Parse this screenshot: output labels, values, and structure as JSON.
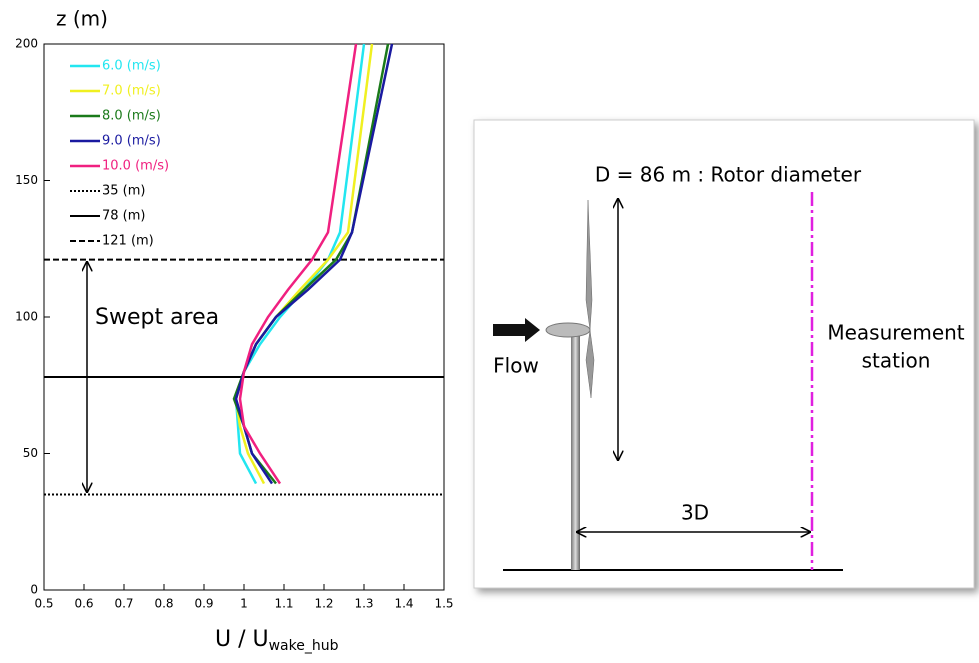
{
  "chart_data": {
    "type": "line",
    "y_label": "z (m)",
    "x_label": {
      "text": "U / U",
      "subscript": "wake_hub"
    },
    "x": [
      39,
      50,
      60,
      70,
      80,
      90,
      100,
      110,
      121,
      131,
      200
    ],
    "series": [
      {
        "name": "6.0 (m/s)",
        "color": "#22e6f0",
        "values": [
          1.03,
          0.99,
          0.985,
          0.98,
          1.0,
          1.04,
          1.09,
          1.15,
          1.21,
          1.24,
          1.3
        ]
      },
      {
        "name": "7.0 (m/s)",
        "color": "#f0f020",
        "values": [
          1.05,
          1.01,
          0.99,
          0.98,
          1.0,
          1.03,
          1.08,
          1.14,
          1.21,
          1.26,
          1.32
        ]
      },
      {
        "name": "8.0 (m/s)",
        "color": "#1a7a1a",
        "values": [
          1.08,
          1.02,
          1.0,
          0.975,
          1.0,
          1.03,
          1.08,
          1.15,
          1.23,
          1.27,
          1.36
        ]
      },
      {
        "name": "9.0 (m/s)",
        "color": "#1a1aa0",
        "values": [
          1.07,
          1.02,
          1.0,
          0.98,
          1.0,
          1.03,
          1.08,
          1.16,
          1.24,
          1.27,
          1.37
        ]
      },
      {
        "name": "10.0 (m/s)",
        "color": "#f02080",
        "values": [
          1.09,
          1.04,
          1.0,
          0.99,
          1.0,
          1.02,
          1.06,
          1.11,
          1.17,
          1.21,
          1.28
        ]
      }
    ],
    "reference_lines": [
      {
        "name": "35 (m)",
        "value": 35,
        "style": "dotted"
      },
      {
        "name": "78 (m)",
        "value": 78,
        "style": "solid"
      },
      {
        "name": "121 (m)",
        "value": 121,
        "style": "dashed"
      }
    ],
    "xlim": [
      0.5,
      1.5
    ],
    "ylim": [
      0,
      200
    ],
    "xticks": [
      0.5,
      0.6,
      0.7,
      0.8,
      0.9,
      1,
      1.1,
      1.2,
      1.3,
      1.4,
      1.5
    ],
    "yticks": [
      0,
      50,
      100,
      150,
      200
    ],
    "annotation": "Swept area",
    "legend": "upper left"
  },
  "diagram": {
    "rotor_label": "D = 86 m : Rotor diameter",
    "flow_label": "Flow",
    "station_label": [
      "Measurement",
      "station"
    ],
    "distance_label": "3D"
  }
}
